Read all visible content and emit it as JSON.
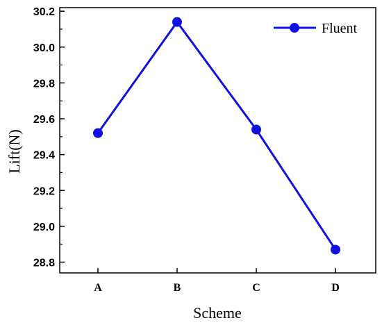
{
  "chart_data": {
    "type": "line",
    "categories": [
      "A",
      "B",
      "C",
      "D"
    ],
    "series": [
      {
        "name": "Fluent",
        "values": [
          29.52,
          30.14,
          29.54,
          28.87
        ],
        "color": "#1010e0"
      }
    ],
    "xlabel": "Scheme",
    "ylabel": "Lift(N)",
    "ylim": [
      28.74,
      30.22
    ],
    "yticks": [
      28.8,
      29.0,
      29.2,
      29.4,
      29.6,
      29.8,
      30.0,
      30.2
    ],
    "ytick_labels": [
      "28.8",
      "29.0",
      "29.2",
      "29.4",
      "29.6",
      "29.8",
      "30.0",
      "30.2"
    ],
    "grid": false,
    "legend_position": "top-right",
    "marker": "circle"
  }
}
